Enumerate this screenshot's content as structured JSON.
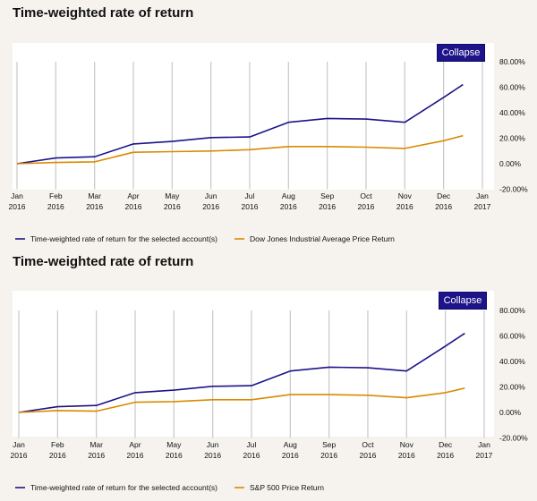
{
  "charts": [
    {
      "title": "Time-weighted rate of return",
      "collapse_label": "Collapse",
      "legend": [
        "Time-weighted rate of return for the selected account(s)",
        "Dow Jones Industrial Average Price Return"
      ]
    },
    {
      "title": "Time-weighted rate of return",
      "collapse_label": "Collapse",
      "legend": [
        "Time-weighted rate of return for the selected account(s)",
        "S&P 500 Price Return"
      ]
    }
  ],
  "colors": {
    "account": "#1c1488",
    "benchmark": "#d98a00",
    "grid": "#c8c8c8",
    "button": "#1c1488"
  },
  "chart_data": [
    {
      "type": "line",
      "title": "Time-weighted rate of return",
      "x": [
        "Jan 2016",
        "Feb 2016",
        "Mar 2016",
        "Apr 2016",
        "May 2016",
        "Jun 2016",
        "Jul 2016",
        "Aug 2016",
        "Sep 2016",
        "Oct 2016",
        "Nov 2016",
        "Dec 2016",
        "Jan 2017"
      ],
      "x_tick_months": [
        "Jan",
        "Feb",
        "Mar",
        "Apr",
        "May",
        "Jun",
        "Jul",
        "Aug",
        "Sep",
        "Oct",
        "Nov",
        "Dec",
        "Jan"
      ],
      "x_tick_years": [
        "2016",
        "2016",
        "2016",
        "2016",
        "2016",
        "2016",
        "2016",
        "2016",
        "2016",
        "2016",
        "2016",
        "2016",
        "2017"
      ],
      "y_ticks": [
        "80.00%",
        "60.00%",
        "40.00%",
        "20.00%",
        "0.00%",
        "-20.00%"
      ],
      "ylim": [
        -20,
        80
      ],
      "series": [
        {
          "name": "Time-weighted rate of return for the selected account(s)",
          "points": [
            [
              0,
              0
            ],
            [
              1,
              4.5
            ],
            [
              2,
              5.5
            ],
            [
              3,
              15.5
            ],
            [
              4,
              17.5
            ],
            [
              5,
              20.5
            ],
            [
              6,
              21
            ],
            [
              7,
              32.5
            ],
            [
              8,
              35.5
            ],
            [
              9,
              35
            ],
            [
              10,
              32.5
            ],
            [
              11,
              52
            ],
            [
              11.5,
              62
            ]
          ]
        },
        {
          "name": "Dow Jones Industrial Average Price Return",
          "points": [
            [
              0,
              0
            ],
            [
              1,
              1
            ],
            [
              2,
              1.5
            ],
            [
              3,
              9
            ],
            [
              4,
              9.5
            ],
            [
              5,
              10
            ],
            [
              6,
              11
            ],
            [
              7,
              13.5
            ],
            [
              8,
              13.5
            ],
            [
              9,
              13
            ],
            [
              10,
              12
            ],
            [
              11,
              18
            ],
            [
              11.5,
              22
            ]
          ]
        }
      ]
    },
    {
      "type": "line",
      "title": "Time-weighted rate of return",
      "x": [
        "Jan 2016",
        "Feb 2016",
        "Mar 2016",
        "Apr 2016",
        "May 2016",
        "Jun 2016",
        "Jul 2016",
        "Aug 2016",
        "Sep 2016",
        "Oct 2016",
        "Nov 2016",
        "Dec 2016",
        "Jan 2017"
      ],
      "x_tick_months": [
        "Jan",
        "Feb",
        "Mar",
        "Apr",
        "May",
        "Jun",
        "Jul",
        "Aug",
        "Sep",
        "Oct",
        "Nov",
        "Dec",
        "Jan"
      ],
      "x_tick_years": [
        "2016",
        "2016",
        "2016",
        "2016",
        "2016",
        "2016",
        "2016",
        "2016",
        "2016",
        "2016",
        "2016",
        "2016",
        "2017"
      ],
      "y_ticks": [
        "80.00%",
        "60.00%",
        "40.00%",
        "20.00%",
        "0.00%",
        "-20.00%"
      ],
      "ylim": [
        -20,
        80
      ],
      "series": [
        {
          "name": "Time-weighted rate of return for the selected account(s)",
          "points": [
            [
              0,
              0
            ],
            [
              1,
              4.5
            ],
            [
              2,
              5.5
            ],
            [
              3,
              15.5
            ],
            [
              4,
              17.5
            ],
            [
              5,
              20.5
            ],
            [
              6,
              21
            ],
            [
              7,
              32.5
            ],
            [
              8,
              35.5
            ],
            [
              9,
              35
            ],
            [
              10,
              32.5
            ],
            [
              11,
              52
            ],
            [
              11.5,
              62
            ]
          ]
        },
        {
          "name": "S&P 500 Price Return",
          "points": [
            [
              0,
              0
            ],
            [
              1,
              1.5
            ],
            [
              2,
              1
            ],
            [
              3,
              8
            ],
            [
              4,
              8.5
            ],
            [
              5,
              10
            ],
            [
              6,
              10
            ],
            [
              7,
              14
            ],
            [
              8,
              14
            ],
            [
              9,
              13.5
            ],
            [
              10,
              11.5
            ],
            [
              11,
              15.5
            ],
            [
              11.5,
              19
            ]
          ]
        }
      ]
    }
  ]
}
